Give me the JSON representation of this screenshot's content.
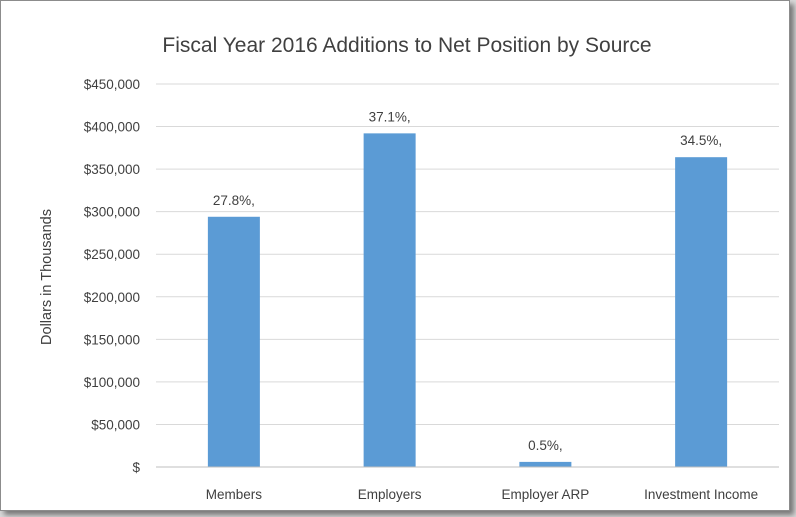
{
  "chart_data": {
    "type": "bar",
    "title": "Fiscal Year 2016 Additions to Net Position by Source",
    "xlabel": "",
    "ylabel": "Dollars in Thousands",
    "categories": [
      "Members",
      "Employers",
      "Employer ARP",
      "Investment Income"
    ],
    "values": [
      294000,
      392000,
      6000,
      364000
    ],
    "data_labels": [
      "27.8%,",
      "37.1%,",
      "0.5%,",
      "34.5%,"
    ],
    "ylim": [
      0,
      450000
    ],
    "yticks": [
      0,
      50000,
      100000,
      150000,
      200000,
      250000,
      300000,
      350000,
      400000,
      450000
    ],
    "ytick_labels": [
      "$",
      "$50,000",
      "$100,000",
      "$150,000",
      "$200,000",
      "$250,000",
      "$300,000",
      "$350,000",
      "$400,000",
      "$450,000"
    ],
    "grid": true,
    "legend": "none",
    "colors": {
      "bar": "#5b9bd5",
      "grid": "#d9d9d9",
      "axis": "#bfbfbf",
      "text": "#404040"
    }
  }
}
